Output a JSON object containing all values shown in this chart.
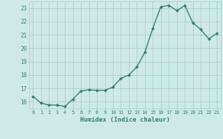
{
  "xlabel": "Humidex (Indice chaleur)",
  "ylabel": "",
  "x": [
    0,
    1,
    2,
    3,
    4,
    5,
    6,
    7,
    8,
    9,
    10,
    11,
    12,
    13,
    14,
    15,
    16,
    17,
    18,
    19,
    20,
    21,
    22,
    23
  ],
  "y": [
    16.4,
    15.9,
    15.75,
    15.75,
    15.65,
    16.2,
    16.8,
    16.9,
    16.85,
    16.85,
    17.1,
    17.75,
    18.0,
    18.6,
    19.7,
    21.5,
    23.1,
    23.2,
    22.8,
    23.2,
    21.9,
    21.4,
    20.7,
    21.1
  ],
  "line_color": "#2e7d6e",
  "marker": "D",
  "marker_size": 2.0,
  "bg_color": "#ceeae7",
  "grid_color": "#a8ccc9",
  "tick_label_color": "#2e7d6e",
  "axis_label_color": "#2e7d6e",
  "ylim": [
    15.5,
    23.5
  ],
  "yticks": [
    16,
    17,
    18,
    19,
    20,
    21,
    22,
    23
  ],
  "xticks": [
    0,
    1,
    2,
    3,
    4,
    5,
    6,
    7,
    8,
    9,
    10,
    11,
    12,
    13,
    14,
    15,
    16,
    17,
    18,
    19,
    20,
    21,
    22,
    23
  ],
  "linewidth": 1.0
}
